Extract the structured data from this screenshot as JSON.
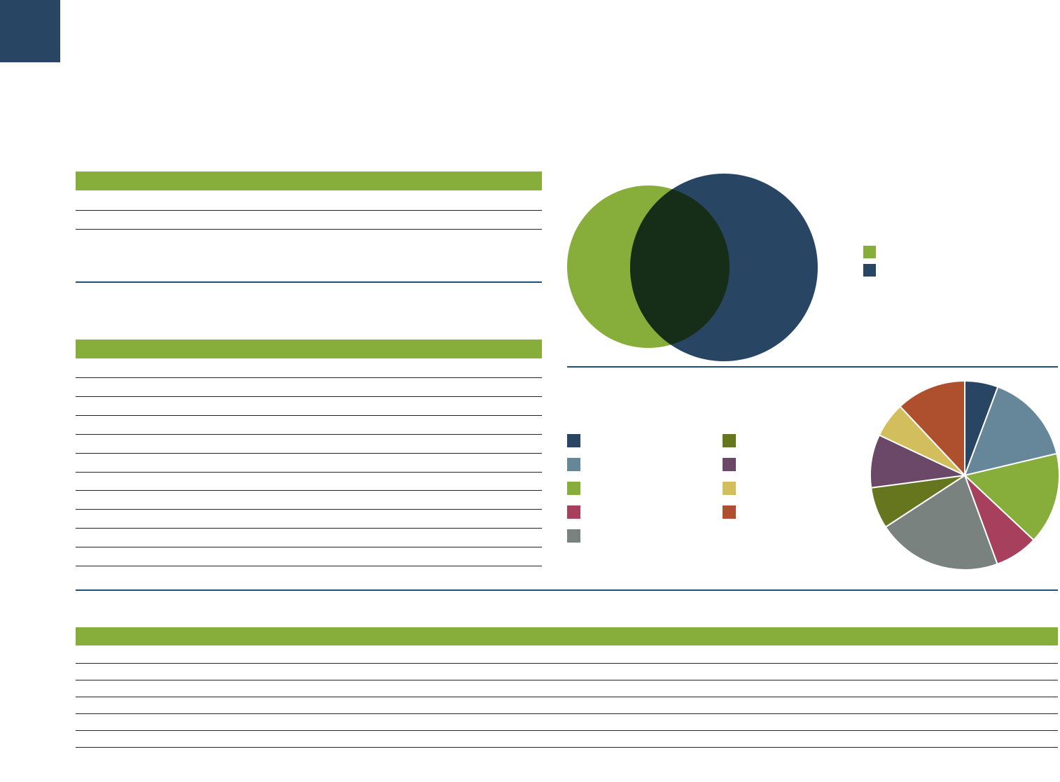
{
  "chart_data": {
    "type": "pie",
    "values": [
      5.7,
      15.6,
      15.7,
      7.4,
      21.4,
      7.1,
      9.1,
      6,
      12
    ],
    "colors": [
      "#284664",
      "#668799",
      "#87ad3b",
      "#a6405d",
      "#7a8280",
      "#66761e",
      "#6b4868",
      "#d3be5e",
      "#ae4f2d"
    ]
  }
}
